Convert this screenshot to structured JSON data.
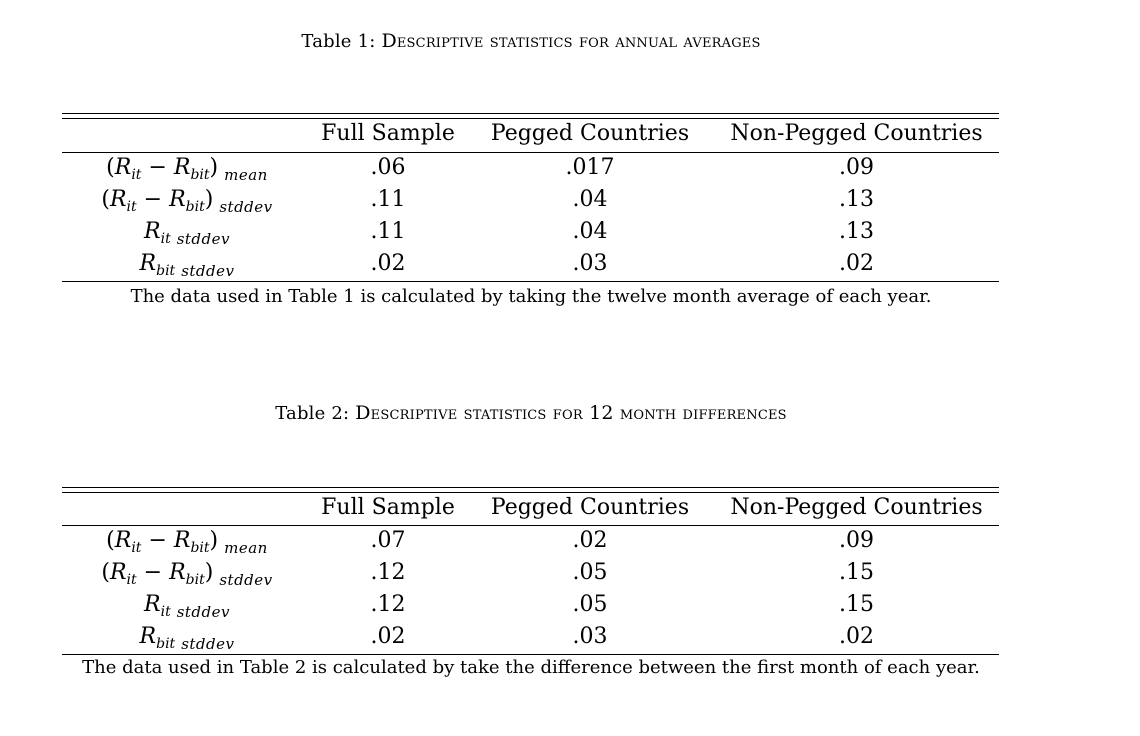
{
  "tables": [
    {
      "caption_prefix": "Table 1:",
      "caption_title": "Descriptive statistics for annual averages",
      "headers": [
        "",
        "Full Sample",
        "Pegged Countries",
        "Non-Pegged Countries"
      ],
      "rows": [
        {
          "label_main": "R",
          "label_sub": "mean",
          "values": [
            ".06",
            ".017",
            ".09"
          ]
        },
        {
          "label_main": "R",
          "label_sub": "stddev",
          "values": [
            ".11",
            ".04",
            ".13"
          ]
        },
        {
          "label_main": "R",
          "label_sub": "stddev",
          "values": [
            ".11",
            ".04",
            ".13"
          ]
        },
        {
          "label_main": "R",
          "label_sub": "stddev",
          "values": [
            ".02",
            ".03",
            ".02"
          ]
        }
      ],
      "note": "The data used in Table 1 is calculated by taking the twelve month average of each year."
    },
    {
      "caption_prefix": "Table 2:",
      "caption_title": "Descriptive statistics for 12 month differences",
      "headers": [
        "",
        "Full Sample",
        "Pegged Countries",
        "Non-Pegged Countries"
      ],
      "rows": [
        {
          "label_main": "R",
          "label_sub": "mean",
          "values": [
            ".07",
            ".02",
            ".09"
          ]
        },
        {
          "label_main": "R",
          "label_sub": "stddev",
          "values": [
            ".12",
            ".05",
            ".15"
          ]
        },
        {
          "label_main": "R",
          "label_sub": "stddev",
          "values": [
            ".12",
            ".05",
            ".15"
          ]
        },
        {
          "label_main": "R",
          "label_sub": "stddev",
          "values": [
            ".02",
            ".03",
            ".02"
          ]
        }
      ],
      "note": "The data used in Table 2 is calculated by take the difference between the first month of each year."
    }
  ],
  "symbols": {
    "var_r": "R",
    "sub_it": "it",
    "sub_bit": "bit",
    "minus": "−",
    "open_paren": "(",
    "close_paren": ")"
  }
}
